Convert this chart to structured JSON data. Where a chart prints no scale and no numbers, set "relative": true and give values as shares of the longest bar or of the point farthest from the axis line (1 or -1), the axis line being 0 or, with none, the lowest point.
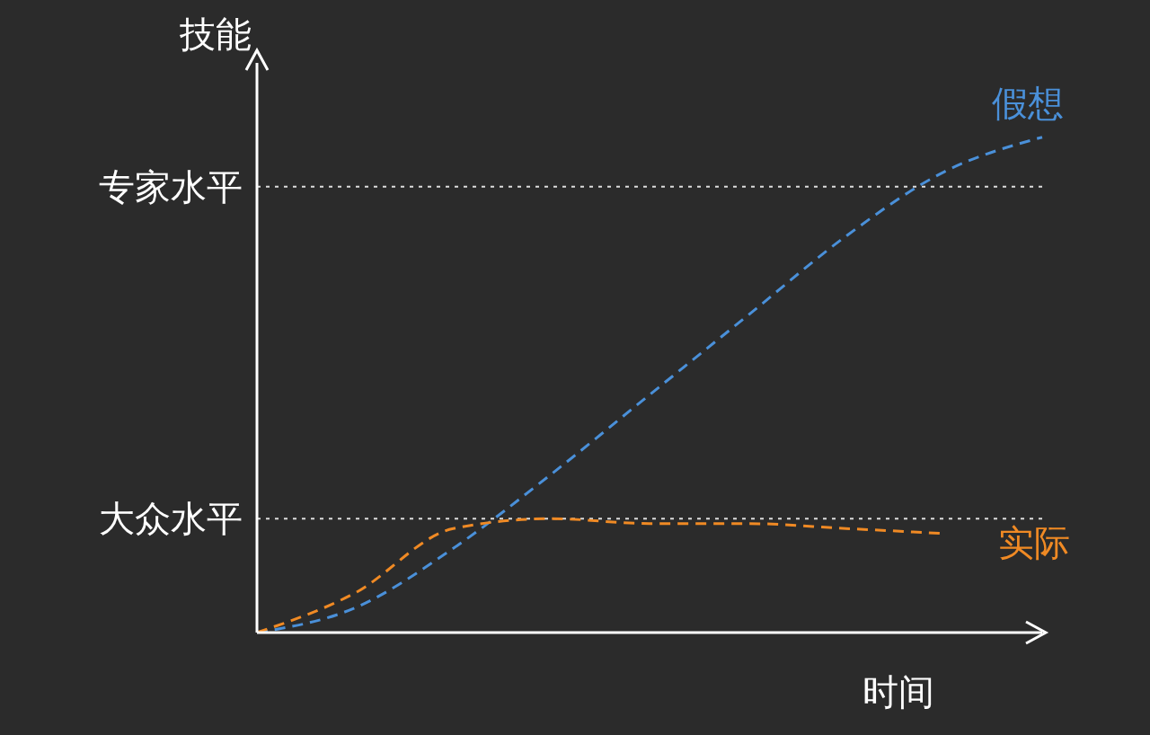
{
  "chart_data": {
    "type": "line",
    "relative": true,
    "xlabel": "时间",
    "ylabel": "技能",
    "categories": [
      null,
      null,
      null,
      null,
      null,
      null,
      null,
      null,
      null
    ],
    "series": [
      {
        "name": "假想",
        "color": "#4a90d9",
        "values": [
          0,
          0.05,
          0.17,
          0.32,
          0.48,
          0.64,
          0.8,
          0.93,
          1
        ]
      },
      {
        "name": "实际",
        "color": "#f08a24",
        "values": [
          0,
          0.08,
          0.21,
          0.23,
          0.22,
          0.22,
          0.21,
          0.2,
          null
        ]
      }
    ],
    "ref_lines": [
      {
        "axis": "y",
        "value": 0.9,
        "label": "专家水平",
        "color": "#dddddd",
        "line_style": "dotted"
      },
      {
        "axis": "y",
        "value": 0.23,
        "label": "大众水平",
        "color": "#dddddd",
        "line_style": "dotted"
      }
    ],
    "legend": false,
    "grid": false,
    "marker": "none",
    "line_style": "dashed"
  }
}
